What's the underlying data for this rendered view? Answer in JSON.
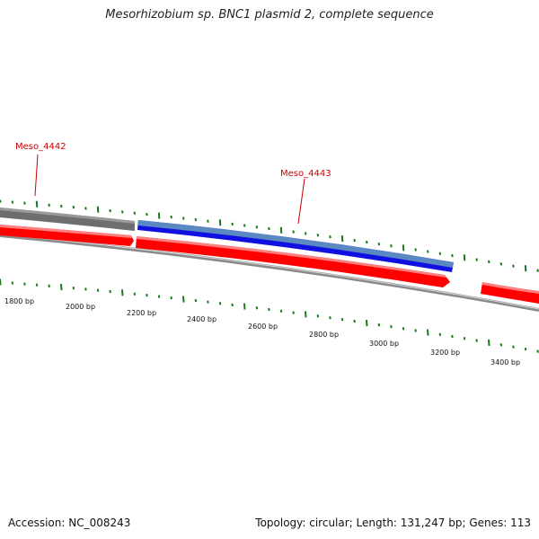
{
  "title": "Mesorhizobium sp. BNC1 plasmid 2, complete sequence",
  "footer": {
    "accession": "Accession: NC_008243",
    "summary": "Topology: circular; Length: 131,247 bp; Genes: 113"
  },
  "colors": {
    "gene_red": "#ff0000",
    "gene_blue": "#1010e0",
    "gene_gray": "#6e6e6e",
    "tick_green": "#1a7a1a",
    "label_red": "#cc0000",
    "backbone": "#8a8a8a"
  },
  "scale_labels": [
    "1800 bp",
    "2000 bp",
    "2200 bp",
    "2400 bp",
    "2600 bp",
    "2800 bp",
    "3000 bp",
    "3200 bp",
    "3400 bp"
  ],
  "genes": [
    {
      "name": "Meso_4442",
      "labeled": true
    },
    {
      "name": "Meso_4443",
      "labeled": true
    }
  ]
}
